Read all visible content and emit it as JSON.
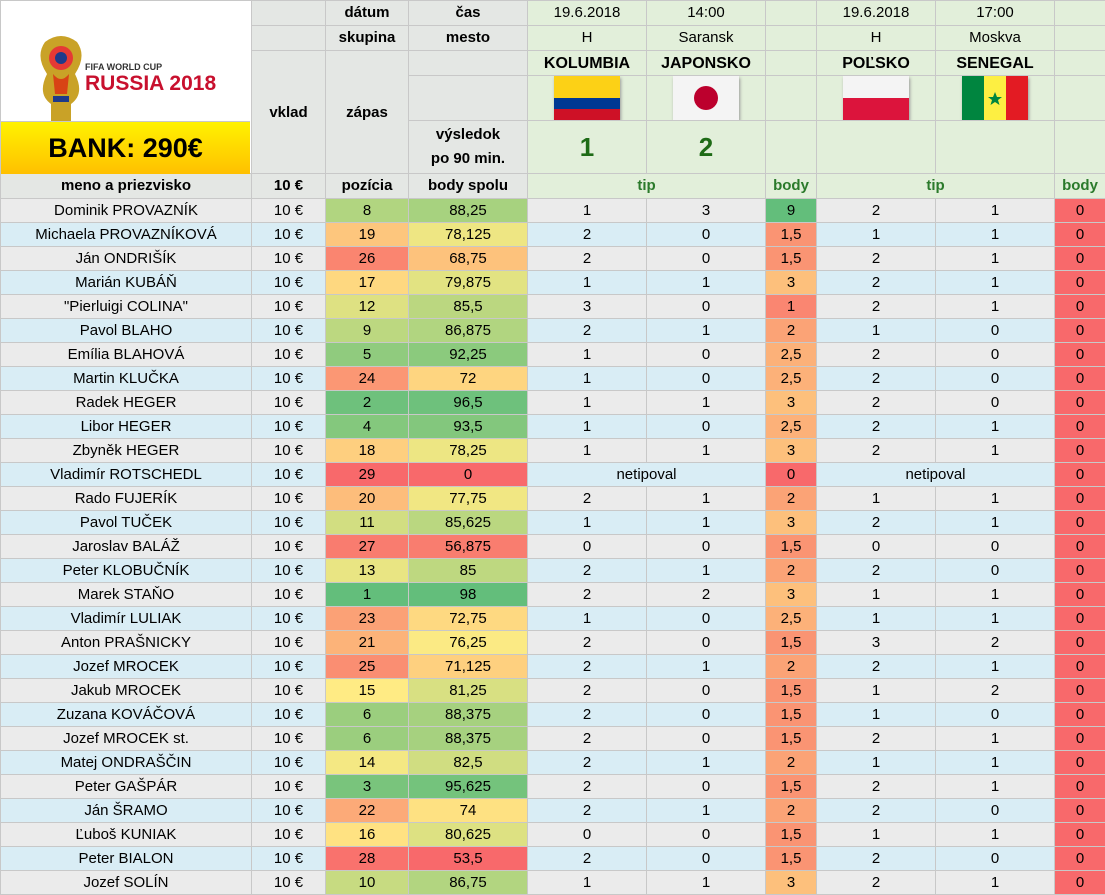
{
  "logo": {
    "line1": "FIFA WORLD CUP",
    "line2": "RUSSIA 2018"
  },
  "bank": "BANK: 290€",
  "header": {
    "datum": "dátum",
    "cas": "čas",
    "skupina": "skupina",
    "mesto": "mesto",
    "vklad": "vklad",
    "zapas": "zápas",
    "vysledok": "výsledok",
    "po90": "po 90 min.",
    "meno": "meno a priezvisko",
    "vklad_val": "10 €",
    "pozicia": "pozícia",
    "body_spolu": "body spolu",
    "tip": "tip",
    "body": "body"
  },
  "matches": [
    {
      "date": "19.6.2018",
      "time": "14:00",
      "group": "H",
      "city": "Saransk",
      "home": "KOLUMBIA",
      "away": "JAPONSKO",
      "home_flag": "colombia-flag",
      "away_flag": "japan-flag",
      "home_score": "1",
      "away_score": "2"
    },
    {
      "date": "19.6.2018",
      "time": "17:00",
      "group": "H",
      "city": "Moskva",
      "home": "POĽSKO",
      "away": "SENEGAL",
      "home_flag": "poland-flag",
      "away_flag": "senegal-flag",
      "home_score": "",
      "away_score": ""
    }
  ],
  "rows": [
    {
      "name": "Dominik PROVAZNÍK",
      "vklad": "10 €",
      "poz": "8",
      "body": "88,25",
      "t1a": "1",
      "t1b": "3",
      "b1": "9",
      "t2a": "2",
      "t2b": "1",
      "b2": "0"
    },
    {
      "name": "Michaela PROVAZNÍKOVÁ",
      "vklad": "10 €",
      "poz": "19",
      "body": "78,125",
      "t1a": "2",
      "t1b": "0",
      "b1": "1,5",
      "t2a": "1",
      "t2b": "1",
      "b2": "0"
    },
    {
      "name": "Ján ONDRIŠÍK",
      "vklad": "10 €",
      "poz": "26",
      "body": "68,75",
      "t1a": "2",
      "t1b": "0",
      "b1": "1,5",
      "t2a": "2",
      "t2b": "1",
      "b2": "0"
    },
    {
      "name": "Marián KUBÁŇ",
      "vklad": "10 €",
      "poz": "17",
      "body": "79,875",
      "t1a": "1",
      "t1b": "1",
      "b1": "3",
      "t2a": "2",
      "t2b": "1",
      "b2": "0"
    },
    {
      "name": "\"Pierluigi COLINA\"",
      "vklad": "10 €",
      "poz": "12",
      "body": "85,5",
      "t1a": "3",
      "t1b": "0",
      "b1": "1",
      "t2a": "2",
      "t2b": "1",
      "b2": "0"
    },
    {
      "name": "Pavol BLAHO",
      "vklad": "10 €",
      "poz": "9",
      "body": "86,875",
      "t1a": "2",
      "t1b": "1",
      "b1": "2",
      "t2a": "1",
      "t2b": "0",
      "b2": "0"
    },
    {
      "name": "Emília BLAHOVÁ",
      "vklad": "10 €",
      "poz": "5",
      "body": "92,25",
      "t1a": "1",
      "t1b": "0",
      "b1": "2,5",
      "t2a": "2",
      "t2b": "0",
      "b2": "0"
    },
    {
      "name": "Martin KLUČKA",
      "vklad": "10 €",
      "poz": "24",
      "body": "72",
      "t1a": "1",
      "t1b": "0",
      "b1": "2,5",
      "t2a": "2",
      "t2b": "0",
      "b2": "0"
    },
    {
      "name": "Radek HEGER",
      "vklad": "10 €",
      "poz": "2",
      "body": "96,5",
      "t1a": "1",
      "t1b": "1",
      "b1": "3",
      "t2a": "2",
      "t2b": "0",
      "b2": "0"
    },
    {
      "name": "Libor HEGER",
      "vklad": "10 €",
      "poz": "4",
      "body": "93,5",
      "t1a": "1",
      "t1b": "0",
      "b1": "2,5",
      "t2a": "2",
      "t2b": "1",
      "b2": "0"
    },
    {
      "name": "Zbyněk HEGER",
      "vklad": "10 €",
      "poz": "18",
      "body": "78,25",
      "t1a": "1",
      "t1b": "1",
      "b1": "3",
      "t2a": "2",
      "t2b": "1",
      "b2": "0"
    },
    {
      "name": "Vladimír ROTSCHEDL",
      "vklad": "10 €",
      "poz": "29",
      "body": "0",
      "netip1": "netipoval",
      "b1": "0",
      "netip2": "netipoval",
      "b2": "0"
    },
    {
      "name": "Rado FUJERÍK",
      "vklad": "10 €",
      "poz": "20",
      "body": "77,75",
      "t1a": "2",
      "t1b": "1",
      "b1": "2",
      "t2a": "1",
      "t2b": "1",
      "b2": "0"
    },
    {
      "name": "Pavol TUČEK",
      "vklad": "10 €",
      "poz": "11",
      "body": "85,625",
      "t1a": "1",
      "t1b": "1",
      "b1": "3",
      "t2a": "2",
      "t2b": "1",
      "b2": "0"
    },
    {
      "name": "Jaroslav BALÁŽ",
      "vklad": "10 €",
      "poz": "27",
      "body": "56,875",
      "t1a": "0",
      "t1b": "0",
      "b1": "1,5",
      "t2a": "0",
      "t2b": "0",
      "b2": "0"
    },
    {
      "name": "Peter KLOBUČNÍK",
      "vklad": "10 €",
      "poz": "13",
      "body": "85",
      "t1a": "2",
      "t1b": "1",
      "b1": "2",
      "t2a": "2",
      "t2b": "0",
      "b2": "0"
    },
    {
      "name": "Marek STAŇO",
      "vklad": "10 €",
      "poz": "1",
      "body": "98",
      "t1a": "2",
      "t1b": "2",
      "b1": "3",
      "t2a": "1",
      "t2b": "1",
      "b2": "0"
    },
    {
      "name": "Vladimír LULIAK",
      "vklad": "10 €",
      "poz": "23",
      "body": "72,75",
      "t1a": "1",
      "t1b": "0",
      "b1": "2,5",
      "t2a": "1",
      "t2b": "1",
      "b2": "0"
    },
    {
      "name": "Anton PRAŠNICKY",
      "vklad": "10 €",
      "poz": "21",
      "body": "76,25",
      "t1a": "2",
      "t1b": "0",
      "b1": "1,5",
      "t2a": "3",
      "t2b": "2",
      "b2": "0"
    },
    {
      "name": "Jozef MROCEK",
      "vklad": "10 €",
      "poz": "25",
      "body": "71,125",
      "t1a": "2",
      "t1b": "1",
      "b1": "2",
      "t2a": "2",
      "t2b": "1",
      "b2": "0"
    },
    {
      "name": "Jakub MROCEK",
      "vklad": "10 €",
      "poz": "15",
      "body": "81,25",
      "t1a": "2",
      "t1b": "0",
      "b1": "1,5",
      "t2a": "1",
      "t2b": "2",
      "b2": "0"
    },
    {
      "name": "Zuzana KOVÁČOVÁ",
      "vklad": "10 €",
      "poz": "6",
      "body": "88,375",
      "t1a": "2",
      "t1b": "0",
      "b1": "1,5",
      "t2a": "1",
      "t2b": "0",
      "b2": "0"
    },
    {
      "name": "Jozef MROCEK st.",
      "vklad": "10 €",
      "poz": "6",
      "body": "88,375",
      "t1a": "2",
      "t1b": "0",
      "b1": "1,5",
      "t2a": "2",
      "t2b": "1",
      "b2": "0"
    },
    {
      "name": "Matej ONDRAŠČIN",
      "vklad": "10 €",
      "poz": "14",
      "body": "82,5",
      "t1a": "2",
      "t1b": "1",
      "b1": "2",
      "t2a": "1",
      "t2b": "1",
      "b2": "0"
    },
    {
      "name": "Peter GAŠPÁR",
      "vklad": "10 €",
      "poz": "3",
      "body": "95,625",
      "t1a": "2",
      "t1b": "0",
      "b1": "1,5",
      "t2a": "2",
      "t2b": "1",
      "b2": "0"
    },
    {
      "name": "Ján ŠRAMO",
      "vklad": "10 €",
      "poz": "22",
      "body": "74",
      "t1a": "2",
      "t1b": "1",
      "b1": "2",
      "t2a": "2",
      "t2b": "0",
      "b2": "0"
    },
    {
      "name": "Ľuboš KUNIAK",
      "vklad": "10 €",
      "poz": "16",
      "body": "80,625",
      "t1a": "0",
      "t1b": "0",
      "b1": "1,5",
      "t2a": "1",
      "t2b": "1",
      "b2": "0"
    },
    {
      "name": "Peter BIALON",
      "vklad": "10 €",
      "poz": "28",
      "body": "53,5",
      "t1a": "2",
      "t1b": "0",
      "b1": "1,5",
      "t2a": "2",
      "t2b": "0",
      "b2": "0"
    },
    {
      "name": "Jozef SOLÍN",
      "vklad": "10 €",
      "poz": "10",
      "body": "86,75",
      "t1a": "1",
      "t1b": "1",
      "b1": "3",
      "t2a": "2",
      "t2b": "1",
      "b2": "0"
    }
  ]
}
